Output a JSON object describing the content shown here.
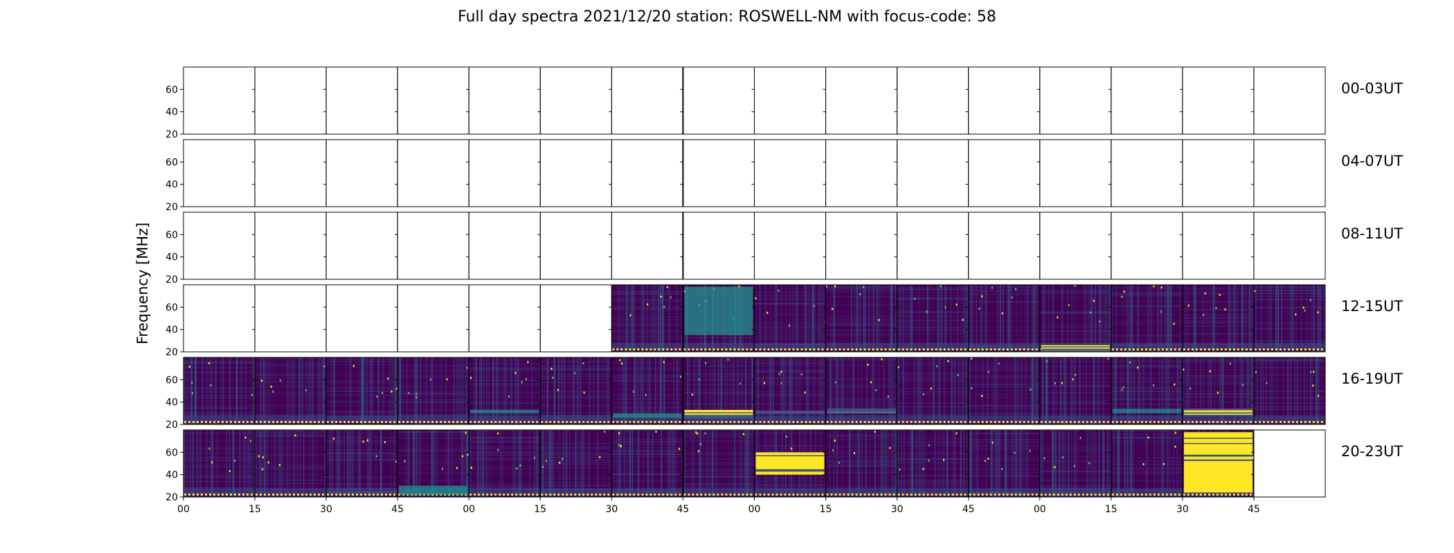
{
  "chart_data": {
    "type": "heatmap",
    "title": "Full day spectra 2021/12/20 station: ROSWELL-NM with focus-code: 58",
    "ylabel": "Frequency [MHz]",
    "xlabel": "",
    "ylim": [
      20,
      80
    ],
    "y_ticks": [
      20,
      40,
      60
    ],
    "x_tick_labels": [
      "00",
      "15",
      "30",
      "45",
      "00",
      "15",
      "30",
      "45",
      "00",
      "15",
      "30",
      "45",
      "00",
      "15",
      "30",
      "45"
    ],
    "colormap": [
      "#440154",
      "#3b528b",
      "#21918c",
      "#5ec962",
      "#fde725"
    ],
    "rows": [
      {
        "label": "00-03UT",
        "panels": [
          "empty",
          "empty",
          "empty",
          "empty",
          "empty",
          "empty",
          "empty",
          "empty",
          "empty",
          "empty",
          "empty",
          "empty",
          "empty",
          "empty",
          "empty",
          "empty"
        ]
      },
      {
        "label": "04-07UT",
        "panels": [
          "empty",
          "empty",
          "empty",
          "empty",
          "empty",
          "empty",
          "empty",
          "empty",
          "empty",
          "empty",
          "empty",
          "empty",
          "empty",
          "empty",
          "empty",
          "empty"
        ]
      },
      {
        "label": "08-11UT",
        "panels": [
          "empty",
          "empty",
          "empty",
          "empty",
          "empty",
          "empty",
          "empty",
          "empty",
          "empty",
          "empty",
          "empty",
          "empty",
          "empty",
          "empty",
          "empty",
          "empty"
        ]
      },
      {
        "label": "12-15UT",
        "panels": [
          "empty",
          "empty",
          "empty",
          "empty",
          "empty",
          "empty",
          "data",
          "data",
          "data",
          "data",
          "data",
          "data",
          "data",
          "data",
          "data",
          "data"
        ],
        "events": [
          {
            "panel": 7,
            "f_low": 35,
            "f_high": 78,
            "intensity": "moderate"
          },
          {
            "panel": 12,
            "f_low": 20,
            "f_high": 26,
            "intensity": "high"
          }
        ]
      },
      {
        "label": "16-19UT",
        "panels": [
          "data",
          "data",
          "data",
          "data",
          "data",
          "data",
          "data",
          "data",
          "data",
          "data",
          "data",
          "data",
          "data",
          "data",
          "data",
          "data"
        ],
        "events": [
          {
            "panel": 4,
            "f_low": 30,
            "f_high": 33,
            "intensity": "moderate"
          },
          {
            "panel": 6,
            "f_low": 26,
            "f_high": 30,
            "intensity": "moderate"
          },
          {
            "panel": 7,
            "f_low": 26,
            "f_high": 33,
            "intensity": "high"
          },
          {
            "panel": 8,
            "f_low": 30,
            "f_high": 32,
            "intensity": "high"
          },
          {
            "panel": 9,
            "f_low": 30,
            "f_high": 34,
            "intensity": "high"
          },
          {
            "panel": 13,
            "f_low": 30,
            "f_high": 34,
            "intensity": "moderate"
          },
          {
            "panel": 14,
            "f_low": 28,
            "f_high": 34,
            "intensity": "high"
          }
        ]
      },
      {
        "label": "20-23UT",
        "panels": [
          "data",
          "data",
          "data",
          "data",
          "data",
          "data",
          "data",
          "data",
          "data",
          "data",
          "data",
          "data",
          "data",
          "data",
          "data",
          "empty"
        ],
        "events": [
          {
            "panel": 3,
            "f_low": 22,
            "f_high": 30,
            "intensity": "moderate"
          },
          {
            "panel": 8,
            "f_low": 40,
            "f_high": 60,
            "intensity": "high"
          },
          {
            "panel": 14,
            "f_low": 24,
            "f_high": 78,
            "intensity": "high"
          }
        ]
      }
    ]
  }
}
